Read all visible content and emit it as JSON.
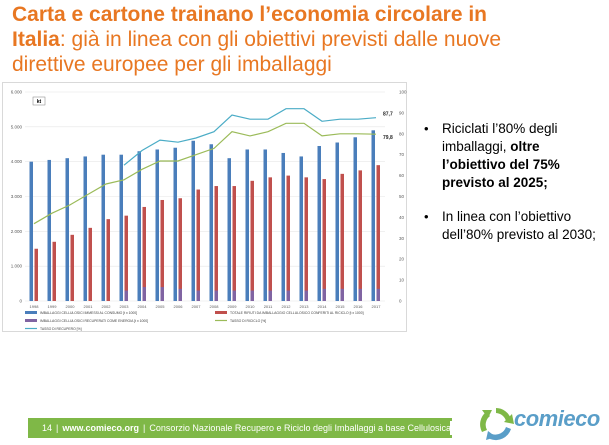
{
  "slide": {
    "title_bold": "Carta e cartone trainano l’economia circolare in Italia",
    "title_rest": ": già in linea con gli obiettivi previsti dalle nuove direttive europee per gli imballaggi",
    "title_bold_line1": "Carta e cartone trainano l’economia circolare in",
    "title_bold_line2": "Italia",
    "title_rest_line2": ": già in linea con gli obiettivi previsti dalle nuove",
    "title_rest_line3": "direttive europee per gli imballaggi"
  },
  "bullets": [
    {
      "text_before": "Riciclati l’80% degli imballaggi, ",
      "text_bold": "oltre l’obiettivo del 75% previsto al 2025;",
      "text_after": ""
    },
    {
      "text_before": "In linea con l’obiettivo dell’80% previsto al 2030;",
      "text_bold": "",
      "text_after": ""
    }
  ],
  "footer": {
    "page_number": "14",
    "url": "www.comieco.org",
    "organization": "Consorzio Nazionale Recupero e Riciclo degli Imballaggi a base Cellulosica"
  },
  "logo": {
    "text": "comieco",
    "color": "#5a9ec8",
    "icon": "recycle-arrows-icon"
  },
  "colors": {
    "title": "#e87722",
    "footer_bar": "#7fb847",
    "bar_blue": "#4a7ebb",
    "bar_red": "#c0504d",
    "bar_purple": "#8064a2",
    "line_green": "#9bbb59",
    "line_cyan": "#4bacc6"
  },
  "chart_data": {
    "type": "bar",
    "unit_badge": "kt",
    "categories": [
      "1998",
      "1999",
      "2000",
      "2001",
      "2002",
      "2003",
      "2004",
      "2005",
      "2006",
      "2007",
      "2008",
      "2009",
      "2010",
      "2011",
      "2012",
      "2013",
      "2014",
      "2015",
      "2016",
      "2017"
    ],
    "ylim_left": [
      0,
      6000
    ],
    "yticks_left": [
      "0",
      "1.000",
      "2.000",
      "3.000",
      "4.000",
      "5.000",
      "6.000"
    ],
    "ylim_right": [
      0,
      100
    ],
    "yticks_right": [
      "0",
      "10",
      "20",
      "30",
      "40",
      "50",
      "60",
      "70",
      "80",
      "90",
      "100"
    ],
    "series": [
      {
        "name": "IMBALLAGGI CELLULOSICI IMMESSI AL CONSUMO [t x 1000]",
        "kind": "bar",
        "axis": "left",
        "color": "#4a7ebb",
        "values": [
          4000,
          4050,
          4100,
          4150,
          4200,
          4200,
          4300,
          4350,
          4400,
          4600,
          4500,
          4100,
          4350,
          4350,
          4250,
          4150,
          4450,
          4550,
          4700,
          4900
        ]
      },
      {
        "name": "TOTALE RIFIUTI DA IMBALLAGGIO CELLULOSICO CONFERITI AL RICICLO [t x 1000]",
        "kind": "bar",
        "axis": "left",
        "color": "#c0504d",
        "values": [
          1500,
          1700,
          1900,
          2100,
          2350,
          2450,
          2700,
          2900,
          2950,
          3200,
          3300,
          3300,
          3450,
          3550,
          3600,
          3550,
          3500,
          3650,
          3750,
          3900
        ]
      },
      {
        "name": "IMBALLAGGI CELLULOSICI RECUPERATI COME ENERGIA [t x 1000]",
        "kind": "bar",
        "axis": "left",
        "color": "#8064a2",
        "values": [
          0,
          0,
          0,
          0,
          0,
          300,
          400,
          400,
          350,
          300,
          300,
          300,
          300,
          300,
          300,
          300,
          350,
          350,
          350,
          350
        ]
      },
      {
        "name": "TASSO DI RICICLO [%]",
        "kind": "line",
        "axis": "right",
        "color": "#9bbb59",
        "values": [
          37,
          42,
          46,
          51,
          56,
          58,
          63,
          67,
          67,
          70,
          73,
          81,
          79,
          81,
          85,
          85,
          79,
          80,
          80,
          79.8
        ]
      },
      {
        "name": "TASSO DI RECUPERO [%]",
        "kind": "line",
        "axis": "right",
        "color": "#4bacc6",
        "values": [
          null,
          null,
          null,
          null,
          null,
          65,
          72,
          77,
          76,
          78,
          81,
          89,
          87,
          87,
          92,
          92,
          86,
          87,
          87,
          87.7
        ]
      }
    ],
    "end_labels": [
      "87,7",
      "79,8"
    ]
  }
}
